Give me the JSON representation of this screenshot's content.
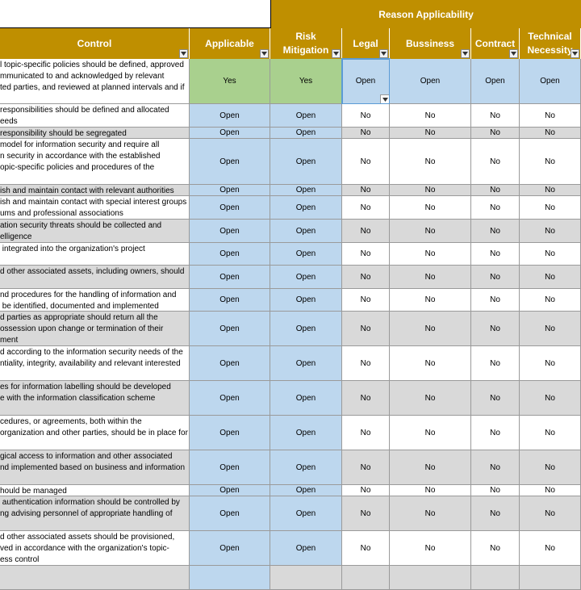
{
  "header": {
    "group_label": "Reason Applicability",
    "columns": [
      "Control",
      "Applicable",
      "Risk Mitigation",
      "Legal",
      "Bussiness",
      "Contract",
      "Technical Necessity"
    ],
    "filter_icon": "dropdown-arrow-icon"
  },
  "rows": [
    {
      "control": "l topic-specific policies should be defined, approved\nmmunicated to and acknowledged by relevant\nted parties, and reviewed at planned intervals and if",
      "applicable": "Yes",
      "risk": "Yes",
      "legal": "Open",
      "business": "Open",
      "contract": "Open",
      "technical": "Open"
    },
    {
      "control": "responsibilities should be defined and allocated\needs",
      "applicable": "Open",
      "risk": "Open",
      "legal": "No",
      "business": "No",
      "contract": "No",
      "technical": "No"
    },
    {
      "control": "responsibility should be segregated",
      "applicable": "Open",
      "risk": "Open",
      "legal": "No",
      "business": "No",
      "contract": "No",
      "technical": "No"
    },
    {
      "control": "model for information security and require all\nn security in accordance with the established\nopic-specific policies and procedures of the",
      "applicable": "Open",
      "risk": "Open",
      "legal": "No",
      "business": "No",
      "contract": "No",
      "technical": "No"
    },
    {
      "control": "ish and maintain contact with relevant authorities",
      "applicable": "Open",
      "risk": "Open",
      "legal": "No",
      "business": "No",
      "contract": "No",
      "technical": "No"
    },
    {
      "control": "ish and maintain contact with special interest groups\nums and professional associations",
      "applicable": "Open",
      "risk": "Open",
      "legal": "No",
      "business": "No",
      "contract": "No",
      "technical": "No"
    },
    {
      "control": "ation security threats should be collected and\nelligence",
      "applicable": "Open",
      "risk": "Open",
      "legal": "No",
      "business": "No",
      "contract": "No",
      "technical": "No"
    },
    {
      "control": " integrated into the organization's project",
      "applicable": "Open",
      "risk": "Open",
      "legal": "No",
      "business": "No",
      "contract": "No",
      "technical": "No"
    },
    {
      "control": "d other associated assets, including owners, should",
      "applicable": "Open",
      "risk": "Open",
      "legal": "No",
      "business": "No",
      "contract": "No",
      "technical": "No"
    },
    {
      "control": "nd procedures for the handling of information and\n be identified, documented and implemented",
      "applicable": "Open",
      "risk": "Open",
      "legal": "No",
      "business": "No",
      "contract": "No",
      "technical": "No"
    },
    {
      "control": "d parties as appropriate should return all the\nossession upon change or termination of their\nment",
      "applicable": "Open",
      "risk": "Open",
      "legal": "No",
      "business": "No",
      "contract": "No",
      "technical": "No"
    },
    {
      "control": "d according to the information security needs of the\nntiality, integrity, availability and relevant interested",
      "applicable": "Open",
      "risk": "Open",
      "legal": "No",
      "business": "No",
      "contract": "No",
      "technical": "No"
    },
    {
      "control": "es for information labelling should be developed\ne with the information classification scheme",
      "applicable": "Open",
      "risk": "Open",
      "legal": "No",
      "business": "No",
      "contract": "No",
      "technical": "No"
    },
    {
      "control": "cedures, or agreements, both within the\norganization and other parties, should be in place for",
      "applicable": "Open",
      "risk": "Open",
      "legal": "No",
      "business": "No",
      "contract": "No",
      "technical": "No"
    },
    {
      "control": "gical access to information and other associated\nnd implemented based on business and information",
      "applicable": "Open",
      "risk": "Open",
      "legal": "No",
      "business": "No",
      "contract": "No",
      "technical": "No"
    },
    {
      "control": "hould be managed",
      "applicable": "Open",
      "risk": "Open",
      "legal": "No",
      "business": "No",
      "contract": "No",
      "technical": "No"
    },
    {
      "control": " authentication information should be controlled by\nng advising personnel of appropriate handling of",
      "applicable": "Open",
      "risk": "Open",
      "legal": "No",
      "business": "No",
      "contract": "No",
      "technical": "No"
    },
    {
      "control": "d other associated assets should be provisioned,\nved in accordance with the organization's topic-\ness control",
      "applicable": "Open",
      "risk": "Open",
      "legal": "No",
      "business": "No",
      "contract": "No",
      "technical": "No"
    },
    {
      "control": "",
      "applicable": "",
      "risk": "",
      "legal": "",
      "business": "",
      "contract": "",
      "technical": ""
    }
  ],
  "colors": {
    "header": "#bf8f00",
    "open_fill": "#bdd7ee",
    "yes_fill": "#a9d08e",
    "alt_row": "#d9d9d9"
  }
}
